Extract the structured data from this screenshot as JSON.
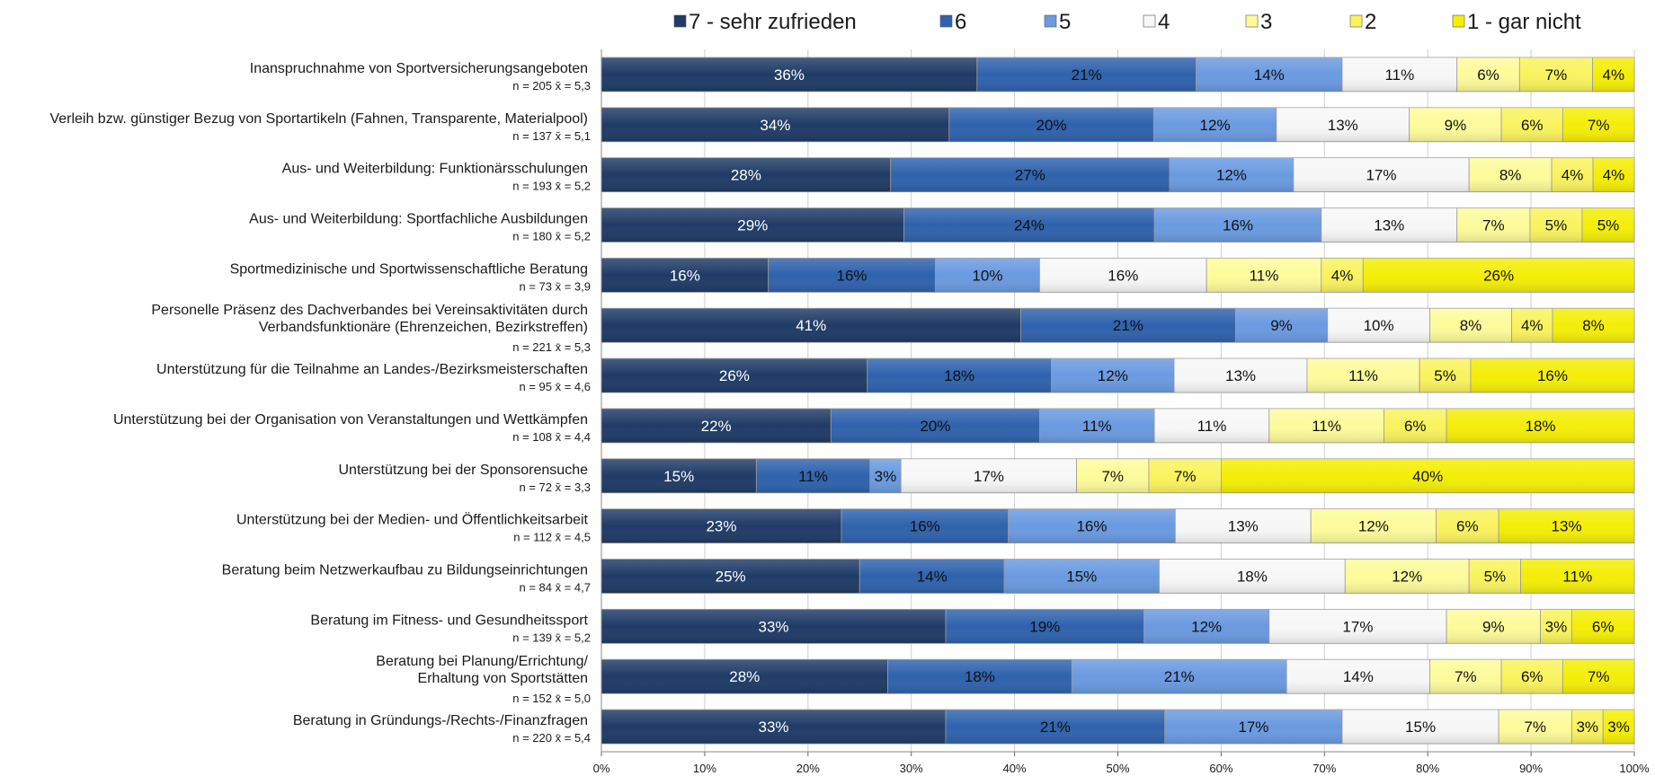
{
  "chart_data": {
    "type": "bar",
    "orientation": "horizontal",
    "stacked": "100%",
    "title": "",
    "xlabel": "",
    "ylabel": "",
    "xlim": [
      0,
      100
    ],
    "x_ticks": [
      "0%",
      "10%",
      "20%",
      "30%",
      "40%",
      "50%",
      "60%",
      "70%",
      "80%",
      "90%",
      "100%"
    ],
    "grid": "vertical",
    "legend_position": "top",
    "series": [
      {
        "name": "7 - sehr zufrieden",
        "color": "#1f3b66",
        "label_color": "#ffffff"
      },
      {
        "name": "6",
        "color": "#2f62ad",
        "label_color": "#111111"
      },
      {
        "name": "5",
        "color": "#6a9ae0",
        "label_color": "#111111"
      },
      {
        "name": "4",
        "color": "#f7f7f7",
        "label_color": "#111111"
      },
      {
        "name": "3",
        "color": "#fdfb9a",
        "label_color": "#111111"
      },
      {
        "name": "2",
        "color": "#f9f35e",
        "label_color": "#111111"
      },
      {
        "name": "1 - gar nicht",
        "color": "#f4ee06",
        "label_color": "#111111"
      }
    ],
    "categories": [
      {
        "label": [
          "Inanspruchnahme von Sportversicherungsangeboten"
        ],
        "n": "n = 205",
        "mean": "x̄ = 5,3",
        "values": [
          36,
          21,
          14,
          11,
          6,
          7,
          4
        ]
      },
      {
        "label": [
          "Verleih bzw. günstiger Bezug von Sportartikeln (Fahnen, Transparente, Materialpool)"
        ],
        "n": "n = 137",
        "mean": "x̄ = 5,1",
        "values": [
          34,
          20,
          12,
          13,
          9,
          6,
          7
        ]
      },
      {
        "label": [
          "Aus- und Weiterbildung: Funktionärsschulungen"
        ],
        "n": "n = 193",
        "mean": "x̄ = 5,2",
        "values": [
          28,
          27,
          12,
          17,
          8,
          4,
          4
        ]
      },
      {
        "label": [
          "Aus- und Weiterbildung: Sportfachliche Ausbildungen"
        ],
        "n": "n = 180",
        "mean": "x̄ = 5,2",
        "values": [
          29,
          24,
          16,
          13,
          7,
          5,
          5
        ]
      },
      {
        "label": [
          "Sportmedizinische und Sportwissenschaftliche Beratung"
        ],
        "n": "n = 73",
        "mean": "x̄ = 3,9",
        "values": [
          16,
          16,
          10,
          16,
          11,
          4,
          26
        ]
      },
      {
        "label": [
          "Personelle Präsenz des Dachverbandes bei Vereinsaktivitäten durch",
          "Verbandsfunktionäre (Ehrenzeichen, Bezirkstreffen)"
        ],
        "n": "n = 221",
        "mean": "x̄ = 5,3",
        "values": [
          41,
          21,
          9,
          10,
          8,
          4,
          8
        ]
      },
      {
        "label": [
          "Unterstützung für die Teilnahme an Landes-/Bezirksmeisterschaften"
        ],
        "n": "n = 95",
        "mean": "x̄ = 4,6",
        "values": [
          26,
          18,
          12,
          13,
          11,
          5,
          16
        ]
      },
      {
        "label": [
          "Unterstützung bei der Organisation von Veranstaltungen und Wettkämpfen"
        ],
        "n": "n = 108",
        "mean": "x̄ = 4,4",
        "values": [
          22,
          20,
          11,
          11,
          11,
          6,
          18
        ]
      },
      {
        "label": [
          "Unterstützung bei der Sponsorensuche"
        ],
        "n": "n = 72",
        "mean": "x̄ = 3,3",
        "values": [
          15,
          11,
          3,
          17,
          7,
          7,
          40
        ]
      },
      {
        "label": [
          "Unterstützung bei der Medien- und Öffentlichkeitsarbeit"
        ],
        "n": "n = 112",
        "mean": "x̄ = 4,5",
        "values": [
          23,
          16,
          16,
          13,
          12,
          6,
          13
        ]
      },
      {
        "label": [
          "Beratung beim Netzwerkaufbau zu Bildungseinrichtungen"
        ],
        "n": "n = 84",
        "mean": "x̄ = 4,7",
        "values": [
          25,
          14,
          15,
          18,
          12,
          5,
          11
        ]
      },
      {
        "label": [
          "Beratung im Fitness- und Gesundheitssport"
        ],
        "n": "n = 139",
        "mean": "x̄ = 5,2",
        "values": [
          33,
          19,
          12,
          17,
          9,
          3,
          6
        ]
      },
      {
        "label": [
          "Beratung bei Planung/Errichtung/",
          "Erhaltung von Sportstätten"
        ],
        "n": "n = 152",
        "mean": "x̄ = 5,0",
        "values": [
          28,
          18,
          21,
          14,
          7,
          6,
          7
        ]
      },
      {
        "label": [
          "Beratung in Gründungs-/Rechts-/Finanzfragen"
        ],
        "n": "n = 220",
        "mean": "x̄ = 5,4",
        "values": [
          33,
          21,
          17,
          15,
          7,
          3,
          3
        ]
      }
    ]
  }
}
